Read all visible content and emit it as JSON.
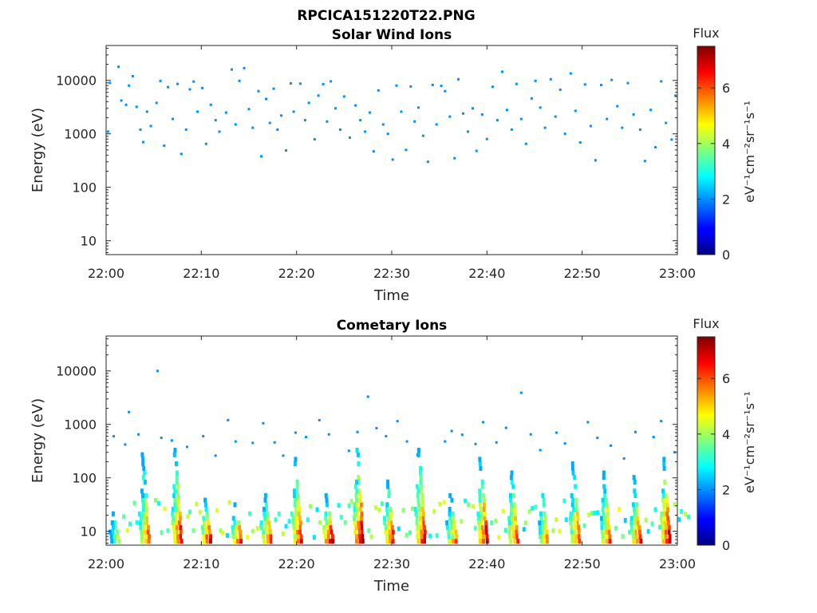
{
  "figure": {
    "filename": "RPCICA151220T22.PNG"
  },
  "colorbar": {
    "label": "Flux",
    "unit_label": "eV⁻¹cm⁻²sr⁻¹s⁻¹",
    "ticks": [
      "0",
      "2",
      "4",
      "6"
    ],
    "range": [
      0,
      7.5
    ],
    "colormap": "jet"
  },
  "chart_data": [
    {
      "type": "heatmap",
      "title": "Solar Wind Ions",
      "xlabel": "Time",
      "ylabel": "Energy (eV)",
      "x_ticks": [
        "22:00",
        "22:10",
        "22:20",
        "22:30",
        "22:40",
        "22:50",
        "23:00"
      ],
      "y_ticks": [
        "10",
        "100",
        "1000",
        "10000"
      ],
      "y_scale": "log",
      "y_range_eV": [
        5.5,
        45000
      ],
      "x_range_min": [
        0,
        60
      ],
      "description_of_data": "Sparse low-flux counts (flux ~2) scattered between about 300 eV and 20000 eV over the whole hour",
      "points": [
        [
          0.2,
          1100,
          2
        ],
        [
          0.4,
          9000,
          2
        ],
        [
          1.3,
          18000,
          2
        ],
        [
          1.6,
          4200,
          2
        ],
        [
          2.1,
          3500,
          2
        ],
        [
          2.4,
          8000,
          2
        ],
        [
          2.8,
          12000,
          2
        ],
        [
          3.2,
          3200,
          2
        ],
        [
          3.6,
          1200,
          2
        ],
        [
          3.9,
          700,
          2
        ],
        [
          4.3,
          2600,
          2
        ],
        [
          4.7,
          1400,
          2
        ],
        [
          5.3,
          3800,
          2
        ],
        [
          5.7,
          9800,
          2
        ],
        [
          6.1,
          600,
          2
        ],
        [
          6.5,
          7500,
          2
        ],
        [
          7.0,
          1900,
          2
        ],
        [
          7.5,
          8600,
          2
        ],
        [
          7.9,
          420,
          2
        ],
        [
          8.4,
          1200,
          2
        ],
        [
          8.8,
          6800,
          2
        ],
        [
          9.2,
          9500,
          2
        ],
        [
          9.6,
          2600,
          2
        ],
        [
          10.1,
          7200,
          2
        ],
        [
          10.5,
          650,
          2
        ],
        [
          11.0,
          3500,
          2
        ],
        [
          11.5,
          1800,
          2
        ],
        [
          11.9,
          1100,
          2
        ],
        [
          12.6,
          2500,
          2
        ],
        [
          13.2,
          16000,
          2
        ],
        [
          13.6,
          1500,
          2
        ],
        [
          14.0,
          9800,
          2
        ],
        [
          14.5,
          17000,
          2
        ],
        [
          15.0,
          2900,
          2
        ],
        [
          15.4,
          1300,
          2
        ],
        [
          16.0,
          6300,
          2
        ],
        [
          16.3,
          380,
          2
        ],
        [
          16.8,
          4500,
          2
        ],
        [
          17.2,
          1600,
          2
        ],
        [
          17.6,
          7000,
          2
        ],
        [
          18.0,
          1200,
          2
        ],
        [
          18.4,
          2200,
          2
        ],
        [
          18.9,
          490,
          2
        ],
        [
          19.4,
          8800,
          2
        ],
        [
          19.7,
          2600,
          2
        ],
        [
          20.4,
          8700,
          2
        ],
        [
          20.9,
          1800,
          2
        ],
        [
          21.3,
          3800,
          2
        ],
        [
          21.9,
          790,
          2
        ],
        [
          22.3,
          5200,
          2
        ],
        [
          22.8,
          8500,
          2
        ],
        [
          23.2,
          1700,
          2
        ],
        [
          23.6,
          9600,
          2
        ],
        [
          24.1,
          3000,
          2
        ],
        [
          24.6,
          1200,
          2
        ],
        [
          25.0,
          5000,
          2
        ],
        [
          25.6,
          850,
          2
        ],
        [
          26.2,
          3400,
          2
        ],
        [
          26.7,
          1800,
          2
        ],
        [
          27.2,
          1100,
          2
        ],
        [
          27.7,
          2500,
          2
        ],
        [
          28.1,
          470,
          2
        ],
        [
          28.6,
          6500,
          2
        ],
        [
          29.1,
          1500,
          2
        ],
        [
          29.6,
          1000,
          2
        ],
        [
          30.1,
          330,
          2
        ],
        [
          30.5,
          8000,
          2
        ],
        [
          31.0,
          2600,
          2
        ],
        [
          31.5,
          500,
          2
        ],
        [
          32.0,
          7700,
          2
        ],
        [
          32.4,
          1700,
          2
        ],
        [
          32.8,
          3100,
          2
        ],
        [
          33.3,
          920,
          2
        ],
        [
          33.8,
          300,
          2
        ],
        [
          34.3,
          8200,
          2
        ],
        [
          34.7,
          1500,
          2
        ],
        [
          35.2,
          7900,
          2
        ],
        [
          35.6,
          6300,
          2
        ],
        [
          36.1,
          2100,
          2
        ],
        [
          36.6,
          350,
          2
        ],
        [
          37.0,
          10500,
          2
        ],
        [
          37.5,
          2400,
          2
        ],
        [
          38.0,
          1100,
          2
        ],
        [
          38.5,
          3000,
          2
        ],
        [
          38.9,
          480,
          2
        ],
        [
          39.5,
          2300,
          2
        ],
        [
          40.0,
          800,
          2
        ],
        [
          40.6,
          7600,
          2
        ],
        [
          41.1,
          1800,
          2
        ],
        [
          41.6,
          14500,
          2
        ],
        [
          42.1,
          2800,
          2
        ],
        [
          42.6,
          1200,
          2
        ],
        [
          43.1,
          8600,
          2
        ],
        [
          43.6,
          1900,
          2
        ],
        [
          44.1,
          650,
          2
        ],
        [
          44.7,
          4600,
          2
        ],
        [
          45.1,
          9800,
          2
        ],
        [
          45.6,
          3100,
          2
        ],
        [
          46.1,
          1300,
          2
        ],
        [
          46.7,
          10500,
          2
        ],
        [
          47.2,
          2100,
          2
        ],
        [
          47.7,
          6700,
          2
        ],
        [
          48.2,
          1000,
          2
        ],
        [
          48.8,
          13500,
          2
        ],
        [
          49.3,
          2700,
          2
        ],
        [
          49.8,
          690,
          2
        ],
        [
          50.3,
          8400,
          2
        ],
        [
          50.9,
          1400,
          2
        ],
        [
          51.4,
          320,
          2
        ],
        [
          52.0,
          8200,
          2
        ],
        [
          52.6,
          1900,
          2
        ],
        [
          53.1,
          10200,
          2
        ],
        [
          53.7,
          3300,
          2
        ],
        [
          54.2,
          1300,
          2
        ],
        [
          54.8,
          8900,
          2
        ],
        [
          55.4,
          2300,
          2
        ],
        [
          56.1,
          1200,
          2
        ],
        [
          56.6,
          310,
          2
        ],
        [
          57.2,
          2800,
          2
        ],
        [
          57.7,
          560,
          2
        ],
        [
          58.3,
          9600,
          2
        ],
        [
          58.8,
          1600,
          2
        ],
        [
          59.4,
          780,
          2
        ],
        [
          59.8,
          5200,
          2
        ]
      ]
    },
    {
      "type": "heatmap",
      "title": "Cometary Ions",
      "xlabel": "Time",
      "ylabel": "Energy (eV)",
      "x_ticks": [
        "22:00",
        "22:10",
        "22:20",
        "22:30",
        "22:40",
        "22:50",
        "23:00"
      ],
      "y_ticks": [
        "10",
        "100",
        "1000",
        "10000"
      ],
      "y_scale": "log",
      "y_range_eV": [
        5.5,
        45000
      ],
      "x_range_min": [
        0,
        60
      ],
      "description_of_data": "Periodic bursts about every 3.3 min; peak flux ~7 at 6-30 eV with dispersed tails up to ~500 eV; sparse low counts up to ~1700 eV",
      "burst_times_min": [
        1.3,
        4.5,
        7.9,
        11.0,
        14.2,
        17.3,
        20.5,
        23.8,
        27.0,
        30.2,
        33.5,
        36.8,
        40.0,
        43.2,
        46.4,
        49.7,
        52.9,
        56.1,
        59.2
      ],
      "burst_peak_flux": [
        4.5,
        6.0,
        6.8,
        7.2,
        6.5,
        6.3,
        6.6,
        7.3,
        7.2,
        6.8,
        6.9,
        5.8,
        7.0,
        6.5,
        6.0,
        6.3,
        6.2,
        6.5,
        7.2
      ],
      "burst_top_energy_eV": [
        30,
        280,
        350,
        40,
        35,
        60,
        330,
        50,
        520,
        120,
        350,
        60,
        250,
        180,
        80,
        220,
        150,
        120,
        300
      ],
      "points": [
        [
          5.4,
          10000,
          2
        ],
        [
          2.4,
          1700,
          2
        ],
        [
          27.5,
          3300,
          2
        ],
        [
          43.6,
          3900,
          2
        ],
        [
          0.8,
          600,
          2
        ],
        [
          2.0,
          420,
          2
        ],
        [
          3.4,
          650,
          2
        ],
        [
          5.8,
          560,
          2
        ],
        [
          6.9,
          500,
          2
        ],
        [
          8.5,
          380,
          2
        ],
        [
          10.2,
          600,
          2
        ],
        [
          11.5,
          260,
          2
        ],
        [
          12.8,
          1200,
          2
        ],
        [
          13.6,
          480,
          2
        ],
        [
          15.4,
          450,
          2
        ],
        [
          16.5,
          1050,
          2
        ],
        [
          17.7,
          460,
          2
        ],
        [
          18.6,
          260,
          2
        ],
        [
          19.9,
          700,
          2
        ],
        [
          21.0,
          580,
          2
        ],
        [
          22.4,
          1200,
          2
        ],
        [
          23.4,
          650,
          2
        ],
        [
          25.5,
          320,
          2
        ],
        [
          26.4,
          720,
          2
        ],
        [
          28.4,
          850,
          2
        ],
        [
          29.4,
          600,
          2
        ],
        [
          30.6,
          1150,
          2
        ],
        [
          31.6,
          480,
          2
        ],
        [
          32.7,
          270,
          2
        ],
        [
          35.6,
          480,
          2
        ],
        [
          36.3,
          750,
          2
        ],
        [
          37.4,
          640,
          2
        ],
        [
          38.8,
          430,
          2
        ],
        [
          39.6,
          1100,
          2
        ],
        [
          41.0,
          460,
          2
        ],
        [
          42.0,
          860,
          2
        ],
        [
          44.6,
          650,
          2
        ],
        [
          45.6,
          330,
          2
        ],
        [
          47.3,
          700,
          2
        ],
        [
          48.2,
          440,
          2
        ],
        [
          50.6,
          1100,
          2
        ],
        [
          51.6,
          560,
          2
        ],
        [
          53.0,
          400,
          2
        ],
        [
          54.4,
          230,
          2
        ],
        [
          55.6,
          720,
          2
        ],
        [
          57.5,
          580,
          2
        ],
        [
          58.3,
          1150,
          2
        ],
        [
          59.7,
          300,
          2
        ]
      ]
    }
  ]
}
